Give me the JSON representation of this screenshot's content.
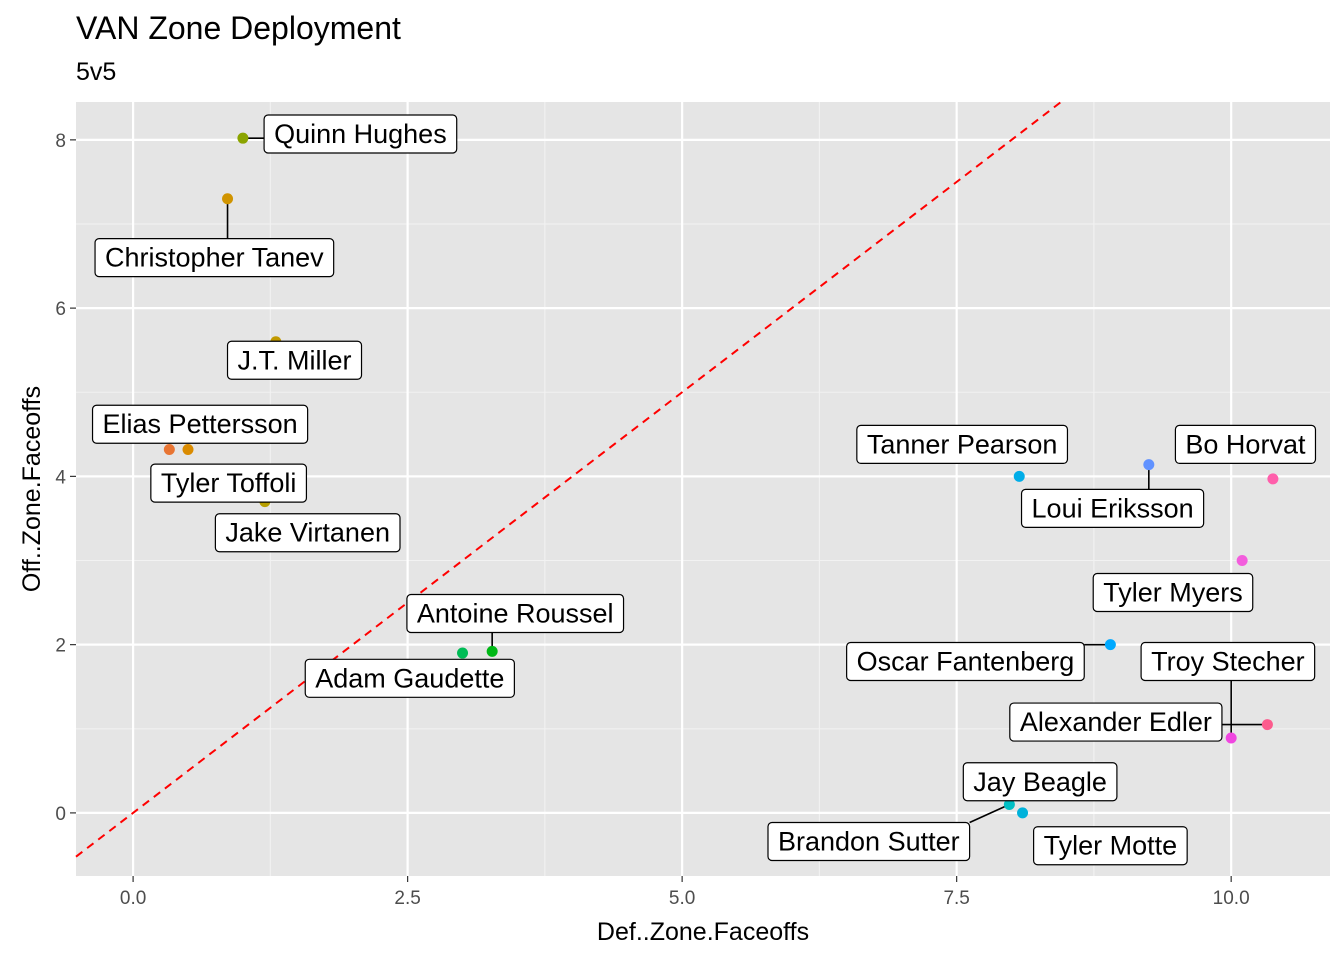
{
  "title": "VAN Zone Deployment",
  "subtitle": "5v5",
  "chart_data": {
    "type": "scatter",
    "title": "VAN Zone Deployment",
    "subtitle": "5v5",
    "xlabel": "Def..Zone.Faceoffs",
    "ylabel": "Off..Zone.Faceoffs",
    "xlim": [
      -0.52,
      10.9
    ],
    "ylim": [
      -0.75,
      8.45
    ],
    "x_ticks": [
      0.0,
      2.5,
      5.0,
      7.5,
      10.0
    ],
    "x_tick_labels": [
      "0.0",
      "2.5",
      "5.0",
      "7.5",
      "10.0"
    ],
    "y_ticks": [
      0,
      2,
      4,
      6,
      8
    ],
    "y_tick_labels": [
      "0",
      "2",
      "4",
      "6",
      "8"
    ],
    "grid": true,
    "background": "#e5e5e5",
    "reference_line": {
      "type": "y=x",
      "style": "dashed",
      "color": "#ff0000"
    },
    "points": [
      {
        "name": "Quinn Hughes",
        "x": 1.0,
        "y": 8.02,
        "color": "#8ba400",
        "label_x": 2.07,
        "label_y": 8.07
      },
      {
        "name": "Christopher Tanev",
        "x": 0.86,
        "y": 7.3,
        "color": "#d09400",
        "label_x": 0.74,
        "label_y": 6.6
      },
      {
        "name": "J.T. Miller",
        "x": 1.3,
        "y": 5.6,
        "color": "#c29a00",
        "label_x": 1.47,
        "label_y": 5.38
      },
      {
        "name": "Elias Pettersson",
        "x": 0.33,
        "y": 4.32,
        "color": "#e87533",
        "label_x": 0.61,
        "label_y": 4.62
      },
      {
        "name": "Tyler Toffoli",
        "x": 0.5,
        "y": 4.32,
        "color": "#da8b00",
        "label_x": 0.87,
        "label_y": 3.92
      },
      {
        "name": "Jake Virtanen",
        "x": 1.2,
        "y": 3.7,
        "color": "#b79f00",
        "label_x": 1.59,
        "label_y": 3.33
      },
      {
        "name": "Antoine Roussel",
        "x": 3.27,
        "y": 1.92,
        "color": "#00b816",
        "label_x": 3.48,
        "label_y": 2.37
      },
      {
        "name": "Adam Gaudette",
        "x": 3.0,
        "y": 1.9,
        "color": "#00bc56",
        "label_x": 2.52,
        "label_y": 1.6
      },
      {
        "name": "Tanner Pearson",
        "x": 8.07,
        "y": 4.0,
        "color": "#00ade8",
        "label_x": 7.55,
        "label_y": 4.38
      },
      {
        "name": "Loui Eriksson",
        "x": 9.25,
        "y": 4.14,
        "color": "#6192ff",
        "label_x": 8.92,
        "label_y": 3.62
      },
      {
        "name": "Bo Horvat",
        "x": 10.38,
        "y": 3.97,
        "color": "#ff5fab",
        "label_x": 10.13,
        "label_y": 4.38
      },
      {
        "name": "Tyler Myers",
        "x": 10.1,
        "y": 3.0,
        "color": "#f35ddd",
        "label_x": 9.47,
        "label_y": 2.62
      },
      {
        "name": "Oscar Fantenberg",
        "x": 8.9,
        "y": 2.0,
        "color": "#00a9ff",
        "label_x": 7.58,
        "label_y": 1.8
      },
      {
        "name": "Troy Stecher",
        "x": 10.0,
        "y": 0.89,
        "color": "#f046e0",
        "label_x": 9.97,
        "label_y": 1.8
      },
      {
        "name": "Alexander Edler",
        "x": 10.33,
        "y": 1.05,
        "color": "#fc5b8d",
        "label_x": 8.95,
        "label_y": 1.08
      },
      {
        "name": "Jay Beagle",
        "x": 7.98,
        "y": 0.18,
        "color": "#00c0b5",
        "label_x": 8.26,
        "label_y": 0.37
      },
      {
        "name": "Brandon Sutter",
        "x": 7.98,
        "y": 0.1,
        "color": "#00bfc4",
        "label_x": 6.7,
        "label_y": -0.34
      },
      {
        "name": "Tyler Motte",
        "x": 8.1,
        "y": 0.0,
        "color": "#00b2db",
        "label_x": 8.9,
        "label_y": -0.39
      }
    ]
  }
}
